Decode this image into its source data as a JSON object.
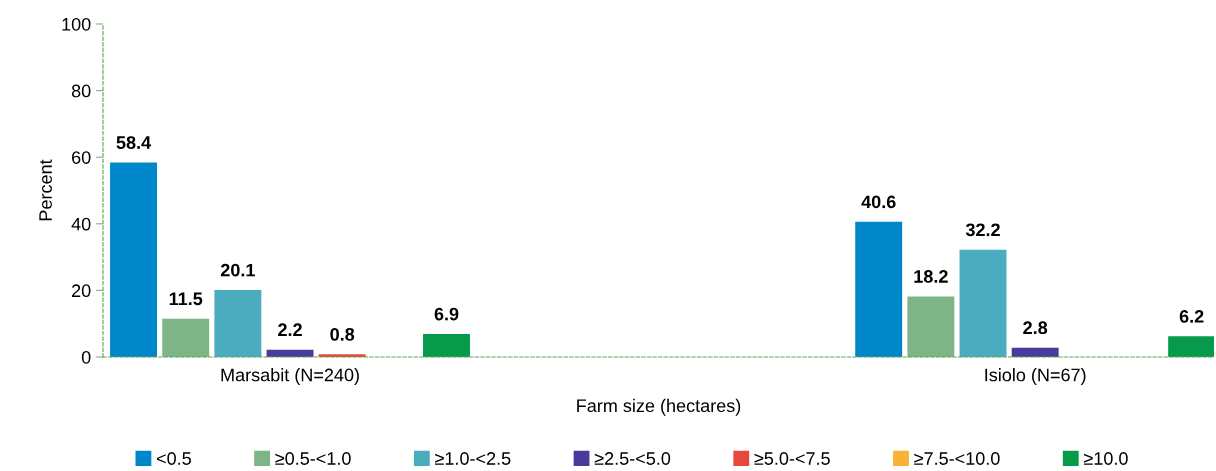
{
  "chart_data": {
    "type": "bar",
    "xlabel": "Farm size (hectares)",
    "ylabel": "Percent",
    "categories": [
      "Marsabit (N=240)",
      "Isiolo (N=67)"
    ],
    "series": [
      {
        "name": "<0.5",
        "color": "#0087c9",
        "values": [
          58.4,
          40.6
        ]
      },
      {
        "name": "≥0.5-<1.0",
        "color": "#7db587",
        "values": [
          11.5,
          18.2
        ]
      },
      {
        "name": "≥1.0-<2.5",
        "color": "#4bacc0",
        "values": [
          20.1,
          32.2
        ]
      },
      {
        "name": "≥2.5-<5.0",
        "color": "#4a3a9c",
        "values": [
          2.2,
          2.8
        ]
      },
      {
        "name": "≥5.0-<7.5",
        "color": "#e8473c",
        "values": [
          0.8,
          null
        ]
      },
      {
        "name": "≥7.5-<10.0",
        "color": "#f9b233",
        "values": [
          null,
          null
        ]
      },
      {
        "name": "≥10.0",
        "color": "#079a4a",
        "values": [
          6.9,
          6.2
        ]
      }
    ],
    "ylim": [
      0,
      100
    ],
    "yticks": [
      0,
      20,
      40,
      60,
      80,
      100
    ],
    "data_labels": true,
    "grid": false,
    "legend": "bottom"
  }
}
